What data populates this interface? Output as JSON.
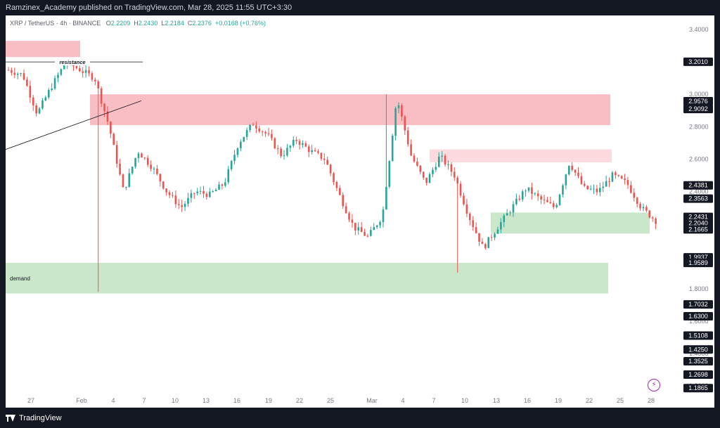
{
  "header": {
    "published_text": "Ramzinex_Academy published on TradingView.com, Mar 28, 2025 11:55 UTC+3:30"
  },
  "legend": {
    "symbol": "XRP / TetherUS · 4h · BINANCE",
    "open_key": "O",
    "open": "2.2209",
    "high_key": "H",
    "high": "2.2430",
    "low_key": "L",
    "low": "2.2184",
    "close_key": "C",
    "close": "2.2376",
    "change": "+0.0168 (+0.76%)"
  },
  "footer": {
    "brand": "TradingView"
  },
  "colors": {
    "up": "#26a69a",
    "down": "#ef5350",
    "supply_zone": "#f7a8b0",
    "supply_zone_light": "#fbcdd2",
    "demand_zone": "#b9dfba",
    "price_label_bg": "#131722"
  },
  "icons": {
    "bottom_right": "lightning-icon",
    "logo": "tradingview-logo-icon"
  },
  "chart_data": {
    "type": "candlestick",
    "title": "",
    "xlabel": "",
    "ylabel": "",
    "ylim": [
      1.1875,
      3.4
    ],
    "y_ticks": [
      "3.4000",
      "3.2000",
      "3.0000",
      "2.8000",
      "2.6000",
      "2.4000",
      "2.2000",
      "2.0000",
      "1.8000",
      "1.6000",
      "1.4000",
      "1.2000"
    ],
    "x_ticks": [
      "27",
      "Feb",
      "4",
      "7",
      "10",
      "13",
      "16",
      "19",
      "22",
      "25",
      "Mar",
      "4",
      "7",
      "10",
      "13",
      "16",
      "19",
      "22",
      "25",
      "28"
    ],
    "price_labels": [
      "3.2010",
      "2.9576",
      "2.9092",
      "2.4381",
      "2.3563",
      "2.2431",
      "2.2040",
      "2.1665",
      "1.9937",
      "1.9589",
      "1.7032",
      "1.6300",
      "1.5108",
      "1.4250",
      "1.3525",
      "1.2698",
      "1.1865"
    ],
    "path": [
      [
        "27",
        3.15
      ],
      [
        "27",
        3.12
      ],
      [
        "27",
        2.88
      ],
      [
        "27",
        3.05
      ],
      [
        "27",
        3.2
      ],
      [
        "Feb",
        3.15
      ],
      [
        "Feb",
        3.1
      ],
      [
        "4",
        2.8
      ],
      [
        "4",
        2.4
      ],
      [
        "4",
        2.65
      ],
      [
        "4",
        2.55
      ],
      [
        "7",
        2.4
      ],
      [
        "7",
        2.3
      ],
      [
        "10",
        2.4
      ],
      [
        "10",
        2.38
      ],
      [
        "13",
        2.45
      ],
      [
        "13",
        2.7
      ],
      [
        "16",
        2.82
      ],
      [
        "16",
        2.75
      ],
      [
        "19",
        2.62
      ],
      [
        "19",
        2.72
      ],
      [
        "22",
        2.65
      ],
      [
        "22",
        2.6
      ],
      [
        "25",
        2.38
      ],
      [
        "25",
        2.18
      ],
      [
        "Mar",
        2.12
      ],
      [
        "Mar",
        2.25
      ],
      [
        "Mar",
        2.98
      ],
      [
        "4",
        2.62
      ],
      [
        "4",
        2.45
      ],
      [
        "7",
        2.62
      ],
      [
        "7",
        2.5
      ],
      [
        "10",
        2.25
      ],
      [
        "10",
        2.05
      ],
      [
        "13",
        2.18
      ],
      [
        "13",
        2.3
      ],
      [
        "16",
        2.42
      ],
      [
        "16",
        2.35
      ],
      [
        "19",
        2.3
      ],
      [
        "19",
        2.58
      ],
      [
        "22",
        2.42
      ],
      [
        "22",
        2.4
      ],
      [
        "25",
        2.5
      ],
      [
        "25",
        2.45
      ],
      [
        "28",
        2.3
      ],
      [
        "28",
        2.22
      ]
    ],
    "zones": [
      {
        "name": "supply-zone-top-left",
        "type": "supply",
        "y_from": 3.23,
        "y_to": 3.33,
        "x_from": "27",
        "x_to": "27"
      },
      {
        "name": "supply-zone-main",
        "type": "supply",
        "y_from": 2.81,
        "y_to": 3.0,
        "x_from": "Feb",
        "x_to": "28"
      },
      {
        "name": "supply-zone-light",
        "type": "supply_light",
        "y_from": 2.58,
        "y_to": 2.66,
        "x_from": "7",
        "x_to": "28"
      },
      {
        "name": "demand-zone-right",
        "type": "demand",
        "y_from": 2.14,
        "y_to": 2.27,
        "x_from": "13",
        "x_to": "28"
      },
      {
        "name": "demand-zone-main",
        "type": "demand",
        "y_from": 1.77,
        "y_to": 1.96,
        "x_from": "27",
        "x_to": "25",
        "label": "demand"
      }
    ],
    "annotations": [
      {
        "name": "resistance-line",
        "type": "hline",
        "y": 3.2,
        "label": "resistance"
      },
      {
        "name": "trend-line",
        "type": "trendline",
        "from_y": 2.66,
        "to_y": 2.96
      }
    ]
  }
}
